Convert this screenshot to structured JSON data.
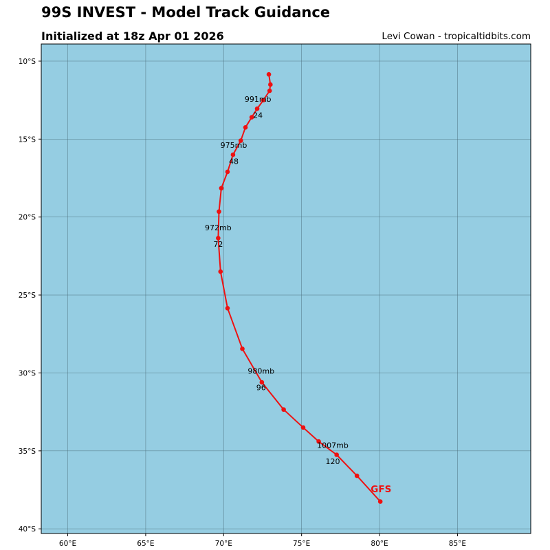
{
  "header": {
    "title": "99S INVEST - Model Track Guidance",
    "subtitle": "Initialized at 18z Apr 01 2026",
    "credit": "Levi Cowan - tropicaltidbits.com"
  },
  "map": {
    "ocean_color": "#95cde2",
    "lon_range": [
      58.3,
      89.7
    ],
    "lat_range": [
      -40.3,
      -8.9
    ],
    "lon_ticks": [
      60,
      65,
      70,
      75,
      80,
      85
    ],
    "lon_tick_labels": [
      "60°E",
      "65°E",
      "70°E",
      "75°E",
      "80°E",
      "85°E"
    ],
    "lat_ticks": [
      -10,
      -15,
      -20,
      -25,
      -30,
      -35,
      -40
    ],
    "lat_tick_labels": [
      "10°S",
      "15°S",
      "20°S",
      "25°S",
      "30°S",
      "35°S",
      "40°S"
    ]
  },
  "track": {
    "model": "GFS",
    "color": "#ee1111",
    "points": [
      {
        "lon": 72.9,
        "lat": -10.85
      },
      {
        "lon": 73.0,
        "lat": -11.5
      },
      {
        "lon": 72.95,
        "lat": -11.9
      },
      {
        "lon": 72.55,
        "lat": -12.5
      },
      {
        "lon": 72.15,
        "lat": -13.05
      },
      {
        "lon": 71.8,
        "lat": -13.6
      },
      {
        "lon": 71.4,
        "lat": -14.25
      },
      {
        "lon": 71.1,
        "lat": -15.1
      },
      {
        "lon": 70.6,
        "lat": -16.0
      },
      {
        "lon": 70.25,
        "lat": -17.1
      },
      {
        "lon": 69.85,
        "lat": -18.15
      },
      {
        "lon": 69.7,
        "lat": -19.65
      },
      {
        "lon": 69.65,
        "lat": -21.35
      },
      {
        "lon": 69.8,
        "lat": -23.5
      },
      {
        "lon": 70.25,
        "lat": -25.85
      },
      {
        "lon": 71.2,
        "lat": -28.45
      },
      {
        "lon": 72.45,
        "lat": -30.6
      },
      {
        "lon": 73.85,
        "lat": -32.35
      },
      {
        "lon": 75.1,
        "lat": -33.5
      },
      {
        "lon": 76.1,
        "lat": -34.4
      },
      {
        "lon": 77.25,
        "lat": -35.25
      },
      {
        "lon": 78.55,
        "lat": -36.6
      },
      {
        "lon": 80.05,
        "lat": -38.25
      }
    ],
    "annotations": [
      {
        "lon": 72.2,
        "lat": -12.6,
        "text": "991mb"
      },
      {
        "lon": 72.2,
        "lat": -13.65,
        "text": "24"
      },
      {
        "lon": 70.65,
        "lat": -15.55,
        "text": "975mb"
      },
      {
        "lon": 70.65,
        "lat": -16.6,
        "text": "48"
      },
      {
        "lon": 69.65,
        "lat": -20.85,
        "text": "972mb"
      },
      {
        "lon": 69.65,
        "lat": -21.9,
        "text": "72"
      },
      {
        "lon": 72.4,
        "lat": -30.05,
        "text": "980mb"
      },
      {
        "lon": 72.4,
        "lat": -31.1,
        "text": "96"
      },
      {
        "lon": 77.0,
        "lat": -34.8,
        "text": "1007mb"
      },
      {
        "lon": 77.0,
        "lat": -35.85,
        "text": "120"
      }
    ],
    "label_position": {
      "lon": 80.1,
      "lat": -37.65
    }
  }
}
